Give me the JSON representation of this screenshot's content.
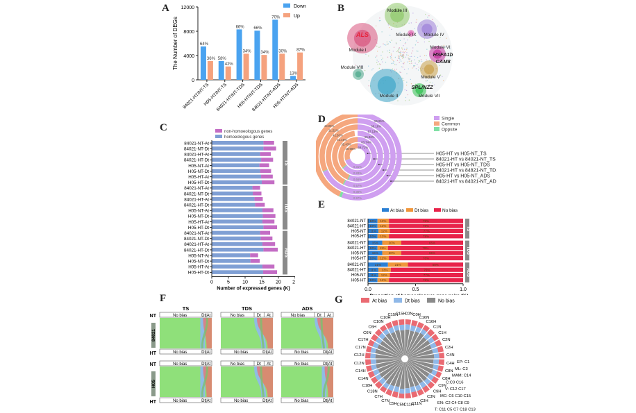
{
  "panels": {
    "A": "A",
    "B": "B",
    "C": "C",
    "D": "D",
    "E": "E",
    "F": "F",
    "G": "G"
  },
  "chart_data": [
    {
      "id": "A",
      "type": "bar",
      "title": "",
      "ylabel": "The Number of DEGs",
      "xlabel": "",
      "ylim": [
        0,
        12000
      ],
      "yticks": [
        "0",
        "4000",
        "8000",
        "12000"
      ],
      "categories": [
        "84021-HT/NT-TS",
        "H05-HT/NT-TS",
        "84021-HT/NT-TDS",
        "H05-HT/NT-TDS",
        "84021-HT/NT-ADS",
        "H05-HT/NT-ADS"
      ],
      "series": [
        {
          "name": "Down",
          "color": "#4aa3f0",
          "values": [
            5500,
            3100,
            8300,
            8100,
            9900,
            650
          ],
          "labels": [
            "64%",
            "58%",
            "66%",
            "66%",
            "70%",
            "13%"
          ]
        },
        {
          "name": "Up",
          "color": "#f5a27e",
          "values": [
            3100,
            2200,
            4300,
            4100,
            4300,
            4500
          ],
          "labels": [
            "36%",
            "42%",
            "34%",
            "34%",
            "30%",
            "87%"
          ]
        }
      ],
      "legend": "top-right"
    },
    {
      "id": "B",
      "type": "network",
      "modules": [
        "Module I",
        "Module II",
        "Module III",
        "Module IV",
        "Module V",
        "Module VI",
        "Module VII",
        "Module VIII",
        "Module IX"
      ],
      "genes": [
        {
          "name": "ALS",
          "color": "#e8223a"
        },
        {
          "name": "HSFA1b",
          "color": "#222222"
        },
        {
          "name": "CAM8",
          "color": "#222222"
        },
        {
          "name": "SPL/NZZ",
          "color": "#222222"
        }
      ]
    },
    {
      "id": "C",
      "type": "bar",
      "orientation": "horizontal",
      "stacked": true,
      "xlabel": "Number of expressed genes (K)",
      "xlim": [
        0,
        25
      ],
      "xticks": [
        "0",
        "5",
        "10",
        "15",
        "20",
        "25"
      ],
      "categories": [
        "84021-NT-At",
        "84021-NT-Dt",
        "84021-HT-At",
        "84021-HT-Dt",
        "H05-NT-At",
        "H05-NT-Dt",
        "H05-HT-At",
        "H05-HT-Dt",
        "84021-NT-At",
        "84021-NT-Dt",
        "84021-HT-At",
        "84021-HT-Dt",
        "H05-NT-At",
        "H05-NT-Dt",
        "H05-HT-At",
        "H05-HT-Dt",
        "84021-NT-At",
        "84021-NT-Dt",
        "84021-HT-At",
        "84021-HT-Dt",
        "H05-NT-At",
        "H05-NT-Dt",
        "H05-HT-At",
        "H05-HT-Dt"
      ],
      "groups": [
        {
          "name": "TS",
          "rows": 8
        },
        {
          "name": "TDS",
          "rows": 8
        },
        {
          "name": "ADS",
          "rows": 8
        }
      ],
      "series": [
        {
          "name": "homoeologous genes",
          "color": "#7f9fd4",
          "values": [
            15.5,
            15.5,
            14.5,
            14.8,
            14.3,
            14.5,
            14.8,
            15.0,
            12.2,
            12.3,
            12.8,
            13.0,
            15.2,
            15.3,
            15.2,
            15.5,
            14.5,
            14.7,
            15.2,
            15.5,
            11.5,
            11.6,
            15.2,
            15.4
          ]
        },
        {
          "name": "non-homoeologous genes",
          "color": "#c36cc4",
          "values": [
            3.2,
            3.8,
            3.2,
            3.6,
            2.9,
            3.3,
            3.5,
            3.8,
            2.3,
            2.6,
            2.5,
            2.9,
            3.3,
            3.8,
            3.6,
            4.1,
            3.0,
            3.5,
            3.8,
            4.3,
            2.4,
            2.8,
            3.6,
            4.2
          ]
        }
      ],
      "legend": "top"
    },
    {
      "id": "D",
      "type": "pie",
      "subtype": "nested-donut",
      "legend": [
        "Single",
        "Common",
        "Oppsite"
      ],
      "colors": {
        "Single": "#cf9ff0",
        "Common": "#f5a77e",
        "Oppsite": "#7fe0a5"
      },
      "rings_inner_to_outer": [
        {
          "name": "H05-HT vs H05-NT_TS",
          "Single": 69.71,
          "Common": 29.98,
          "Oppsite": 0.31
        },
        {
          "name": "84021-HT vs 84021-NT_TS",
          "Single": 63.74,
          "Common": 35.43,
          "Oppsite": 0.83
        },
        {
          "name": "H05-HT vs H05-NT_TDS",
          "Single": 55.86,
          "Common": 41.48,
          "Oppsite": 0.66
        },
        {
          "name": "84021-HT vs 84821-NT_TDS",
          "Single": 57.13,
          "Common": 42.3,
          "Oppsite": 0.57
        },
        {
          "name": "H05-HT vs H05-NT_ADS",
          "Single": 68.18,
          "Common": 31.52,
          "Oppsite": 0.3
        },
        {
          "name": "84021-HT vs 84021-NT_ADS",
          "Single": 55.95,
          "Common": 43.08,
          "Oppsite": 0.97
        }
      ],
      "single_labels": [
        "69.71%",
        "63.74%",
        "55.86%",
        "57.13%",
        "68.18%",
        "55.95%"
      ],
      "common_labels": [
        "29.98%",
        "35.43%",
        "41.48%",
        "42.30%",
        "31.52%",
        "43.08%"
      ],
      "oppsite_labels": [
        "0.31%",
        "0.83%",
        "0.66%",
        "0.57%",
        "0.30%",
        "0.97%"
      ]
    },
    {
      "id": "E",
      "type": "bar",
      "orientation": "horizontal",
      "stacked": true,
      "xlabel": "Proportion of homoeologous gene pairs (%)",
      "xlim": [
        0,
        1
      ],
      "xticks": [
        "0.0",
        "0.5",
        "1.0"
      ],
      "categories": [
        "84021-NT",
        "84021-HT",
        "H05-NT",
        "H05-HT",
        "84021-NT",
        "84021-HT",
        "H05-NT",
        "H05-HT",
        "84021-NT",
        "84021-HT",
        "H05-NT",
        "H05-HT"
      ],
      "groups": [
        {
          "name": "TS",
          "rows": 4
        },
        {
          "name": "TDS",
          "rows": 4
        },
        {
          "name": "ADS",
          "rows": 4
        }
      ],
      "series": [
        {
          "name": "At bias",
          "color": "#2a7fd4",
          "values": [
            10,
            10,
            11,
            10,
            15,
            10,
            15,
            10,
            21,
            11,
            11,
            10
          ]
        },
        {
          "name": "Dt bias",
          "color": "#f0963a",
          "values": [
            12,
            12,
            12,
            12,
            20,
            11,
            20,
            12,
            21,
            13,
            12,
            12
          ]
        },
        {
          "name": "No bias",
          "color": "#e8234a",
          "values": [
            78,
            78,
            77,
            78,
            65,
            79,
            65,
            78,
            58,
            76,
            77,
            78
          ]
        }
      ],
      "value_labels": {
        "At bias": [
          "10%",
          "10%",
          "11%",
          "10%",
          "15%",
          "10%",
          "15%",
          "10%",
          "21%",
          "11%",
          "11%",
          "10%"
        ],
        "Dt bias": [
          "12%",
          "12%",
          "12%",
          "12%",
          "20%",
          "11%",
          "20%",
          "12%",
          "21%",
          "13%",
          "12%",
          "12%"
        ],
        "No bias": [
          "78%",
          "78%",
          "77%",
          "78%",
          "65%",
          "79%",
          "65%",
          "78%",
          "58%",
          "76%",
          "77%",
          "78%"
        ]
      },
      "legend": "top"
    },
    {
      "id": "F",
      "type": "sankey",
      "columns": [
        "TS",
        "TDS",
        "ADS"
      ],
      "rows": [
        {
          "name": "84021",
          "top": "NT",
          "bottom": "HT"
        },
        {
          "name": "H05",
          "top": "NT",
          "bottom": "HT"
        }
      ],
      "node_labels": {
        "no_bias": "No bias",
        "dt": "Dt",
        "at": "At",
        "dtat": "Dt|At"
      },
      "colors": {
        "No bias": "#8fe07a",
        "Dt": "#8fb8ef",
        "At": "#ef6f6f"
      }
    },
    {
      "id": "G",
      "type": "radial-bar",
      "legend": [
        "At bias",
        "Dt bias",
        "No bias"
      ],
      "colors": {
        "At bias": "#ea6a72",
        "Dt bias": "#8fb8e8",
        "No bias": "#8a8a8a"
      },
      "categories": [
        "C0N",
        "C0H",
        "C16N",
        "C16H",
        "C1N",
        "C1H",
        "C2N",
        "C2H",
        "C4N",
        "C4H",
        "C8N",
        "C8H",
        "C9N",
        "C9H",
        "C3N",
        "C3H",
        "C11N",
        "C11H",
        "C5N",
        "C5H",
        "C7N",
        "C7H",
        "C18N",
        "C18H",
        "C14N",
        "C14H",
        "C12N",
        "C12H",
        "C17N",
        "C17H",
        "C6N",
        "C6H",
        "C10N",
        "C10H",
        "C15N",
        "C15H"
      ],
      "series": [
        {
          "name": "No bias",
          "values": [
            0.72,
            0.7,
            0.72,
            0.74,
            0.7,
            0.72,
            0.7,
            0.7,
            0.72,
            0.7,
            0.72,
            0.74,
            0.7,
            0.72,
            0.7,
            0.72,
            0.7,
            0.72,
            0.74,
            0.7,
            0.72,
            0.74,
            0.7,
            0.72,
            0.7,
            0.72,
            0.7,
            0.72,
            0.74,
            0.72,
            0.7,
            0.72,
            0.74,
            0.7,
            0.72,
            0.7
          ]
        },
        {
          "name": "Dt bias",
          "values": [
            0.14,
            0.15,
            0.14,
            0.13,
            0.15,
            0.14,
            0.15,
            0.15,
            0.14,
            0.15,
            0.14,
            0.13,
            0.15,
            0.14,
            0.15,
            0.14,
            0.15,
            0.14,
            0.13,
            0.15,
            0.14,
            0.13,
            0.15,
            0.14,
            0.15,
            0.14,
            0.15,
            0.14,
            0.13,
            0.14,
            0.15,
            0.14,
            0.13,
            0.15,
            0.14,
            0.15
          ]
        },
        {
          "name": "At bias",
          "values": [
            0.14,
            0.15,
            0.14,
            0.13,
            0.15,
            0.14,
            0.15,
            0.15,
            0.14,
            0.15,
            0.14,
            0.13,
            0.15,
            0.14,
            0.15,
            0.14,
            0.15,
            0.14,
            0.13,
            0.15,
            0.14,
            0.13,
            0.15,
            0.14,
            0.15,
            0.14,
            0.15,
            0.14,
            0.13,
            0.14,
            0.15,
            0.14,
            0.13,
            0.15,
            0.14,
            0.15
          ]
        }
      ],
      "annotations": [
        "EP: C1",
        "ML: C3",
        "MAM: C14",
        "C:C0 C16",
        "V: C12 C17",
        "MC: C6 C10 C15",
        "EN: C2 C4 C8 C9",
        "T:  C11 C5 C7 C18 C13"
      ]
    }
  ]
}
